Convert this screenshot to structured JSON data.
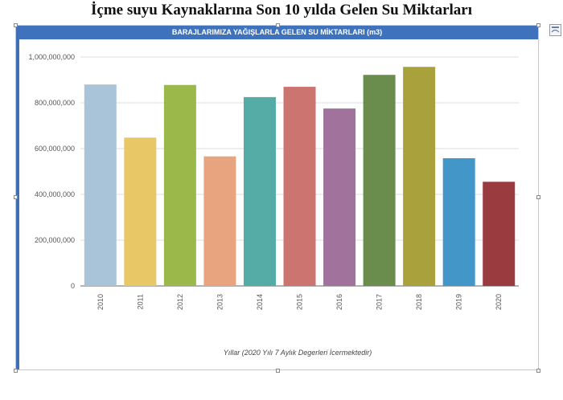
{
  "page_title": "İçme suyu Kaynaklarına Son 10 yılda Gelen Su Miktarları",
  "chart_data": {
    "type": "bar",
    "title": "BARAJLARIMIZA YAĞIŞLARLA GELEN SU MİKTARLARI (m3)",
    "xlabel": "Yıllar (2020 Yılı 7 Aylık Degerleri İcermektedir)",
    "ylabel": "",
    "categories": [
      "2010",
      "2011",
      "2012",
      "2013",
      "2014",
      "2015",
      "2016",
      "2017",
      "2018",
      "2019",
      "2020"
    ],
    "values": [
      880000000,
      648000000,
      878000000,
      566000000,
      825000000,
      870000000,
      775000000,
      922000000,
      957000000,
      558000000,
      455000000
    ],
    "colors": [
      "#a9c3d8",
      "#e8c766",
      "#9bb84a",
      "#e8a47e",
      "#55aba6",
      "#cc7470",
      "#a0729c",
      "#6a8c4c",
      "#a8a13c",
      "#4396c8",
      "#9a3b40"
    ],
    "yticks": [
      "0",
      "200,000,000",
      "400,000,000",
      "600,000,000",
      "800,000,000",
      "1,000,000,000"
    ],
    "ylim": [
      0,
      1000000000
    ],
    "grid": true,
    "legend": "none"
  }
}
